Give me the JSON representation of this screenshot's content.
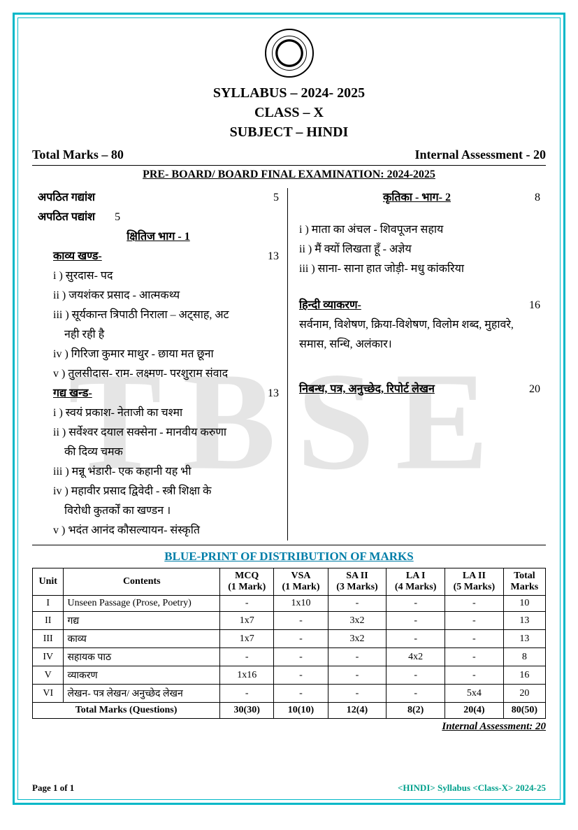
{
  "header": {
    "syllabus": "SYLLABUS – 2024- 2025",
    "class": "CLASS – X",
    "subject": "SUBJECT – HINDI"
  },
  "marks": {
    "total": "Total Marks – 80",
    "internal": "Internal Assessment - 20"
  },
  "exam_title": "PRE- BOARD/ BOARD FINAL EXAMINATION: 2024-2025",
  "left": {
    "l1a": "अपठित गद्यांश",
    "l1b": "5",
    "l2a": "अपठित पद्यांश",
    "l2b": "5",
    "book1": "क्षितिज भाग - 1",
    "kavya": "काव्य खण्ड-",
    "kavya_m": "13",
    "k1": "i ) सुरदास-  पद",
    "k2": "ii ) जयशंकर प्रसाद - आत्मकथ्य",
    "k3": "iii )  सूर्यकान्त त्रिपाठी निराला – अट्साह, अट",
    "k3b": "नही रही है",
    "k4": "iv )  गिरिजा कुमार माथुर - छाया मत छूना",
    "k5": "v ) तुलसीदास- राम- लक्ष्मण- परशुराम संवाद",
    "gadya": "गद्य खन्ड-",
    "gadya_m": "13",
    "g1": "i ) स्वयं प्रकाश- नेताजी का चश्मा",
    "g2": "ii ) सर्वेश्वर दयाल सक्सेना - मानवीय करुणा",
    "g2b": "की दिव्य चमक",
    "g3": "iii )  मन्नू भंडारी- एक कहानी यह भी",
    "g4": "iv )  महावीर प्रसाद द्विवेदी - स्त्री शिक्षा के",
    "g4b": "विरोधी कुतर्कों का खण्डन ।",
    "g5": "v ) भदंत आनंद कौसल्यायन- संस्कृति"
  },
  "right": {
    "kritika": "कृतिका - भाग- 2",
    "kritika_m": "8",
    "kr1": "i ) माता का अंचल - शिवपूजन सहाय",
    "kr2": "ii ) मैं क्यों लिखता हूँ - अज्ञेय",
    "kr3": "iii )   साना- साना हात जोड़ी- मधु कांकरिया",
    "vyak": "हिन्दी व्याकरण-",
    "vyak_m": "16",
    "vyak_items": "सर्वनाम, विशेषण, क्रिया-विशेषण, विलोम शब्द, मुहावरे, समास, सन्धि, अलंकार।",
    "lekhan": "निबन्ध, पत्र, अनुच्छेद, रिपोर्ट लेखन",
    "lekhan_m": "20"
  },
  "blueprint_title": "BLUE-PRINT OF DISTRIBUTION OF MARKS",
  "table": {
    "headers": [
      "Unit",
      "Contents",
      "MCQ\n(1 Mark)",
      "VSA\n(1 Mark)",
      "SA II\n(3 Marks)",
      "LA I\n(4 Marks)",
      "LA II\n(5 Marks)",
      "Total\nMarks"
    ],
    "rows": [
      [
        "I",
        "Unseen Passage (Prose, Poetry)",
        "-",
        "1x10",
        "-",
        "-",
        "-",
        "10"
      ],
      [
        "II",
        "गद्य",
        "1x7",
        "-",
        "3x2",
        "-",
        "-",
        "13"
      ],
      [
        "III",
        "काव्य",
        "1x7",
        "-",
        "3x2",
        "-",
        "-",
        "13"
      ],
      [
        "IV",
        "सहायक पाठ",
        "-",
        "-",
        "-",
        "4x2",
        "-",
        "8"
      ],
      [
        "V",
        "व्याकरण",
        "1x16",
        "-",
        "-",
        "-",
        "-",
        "16"
      ],
      [
        "VI",
        "लेखन- पत्र लेखन/ अनुच्छेद लेखन",
        "-",
        "-",
        "-",
        "-",
        "5x4",
        "20"
      ]
    ],
    "total_row": [
      "Total Marks (Questions)",
      "30(30)",
      "10(10)",
      "12(4)",
      "8(2)",
      "20(4)",
      "80(50)"
    ]
  },
  "footer_ia": "Internal Assessment: 20",
  "page": "Page 1 of 1",
  "doc_foot": "<HINDI> Syllabus <Class-X> 2024-25",
  "watermark": "TBSE"
}
